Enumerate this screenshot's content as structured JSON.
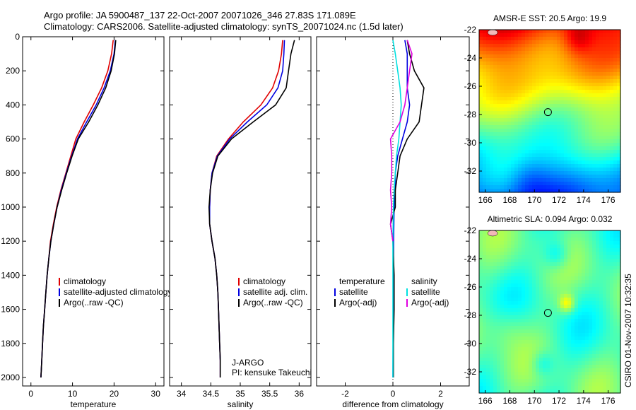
{
  "header": {
    "line1": "Argo profile: JA 5900487_137 22-Oct-2007 20071026_346 27.83S 171.089E",
    "line2": "Climatology: CARS2006. Satellite-adjusted climatology: synTS_20071024.nc (1.5d later)"
  },
  "side_text": "CSIRO 01-Nov-2007 10:32:35",
  "pi_text": [
    "J-ARGO",
    "PI: kensuke Takeuchi"
  ],
  "colors": {
    "climatology": "#e00000",
    "satellite": "#0000e0",
    "argo": "#000000",
    "sat_salinity": "#00e0e0",
    "argo_salinity": "#e000e0"
  },
  "chart_data": [
    {
      "type": "line",
      "xlabel": "temperature",
      "xlim": [
        -2,
        32
      ],
      "ylim": [
        0,
        2050
      ],
      "y_reversed": true,
      "xticks": [
        0,
        10,
        20,
        30
      ],
      "yticks": [
        0,
        200,
        400,
        600,
        800,
        1000,
        1200,
        1400,
        1600,
        1800,
        2000
      ],
      "legend": [
        "climatology",
        "satellite-adjusted climatology",
        "Argo(..raw -QC)"
      ],
      "series": [
        {
          "name": "climatology",
          "color": "#e00000",
          "points": [
            [
              19.8,
              20
            ],
            [
              19.4,
              100
            ],
            [
              18.5,
              200
            ],
            [
              17.0,
              300
            ],
            [
              15.0,
              400
            ],
            [
              12.8,
              500
            ],
            [
              10.8,
              600
            ],
            [
              9.6,
              700
            ],
            [
              8.4,
              800
            ],
            [
              7.2,
              900
            ],
            [
              6.2,
              1000
            ],
            [
              5.4,
              1100
            ],
            [
              4.7,
              1200
            ],
            [
              4.3,
              1300
            ],
            [
              3.9,
              1400
            ],
            [
              3.6,
              1500
            ],
            [
              3.3,
              1600
            ],
            [
              3.0,
              1700
            ],
            [
              2.8,
              1800
            ],
            [
              2.6,
              1900
            ],
            [
              2.4,
              2000
            ]
          ]
        },
        {
          "name": "satellite-adjusted climatology",
          "color": "#0000e0",
          "points": [
            [
              20.3,
              20
            ],
            [
              20.0,
              100
            ],
            [
              19.1,
              200
            ],
            [
              17.6,
              300
            ],
            [
              15.7,
              400
            ],
            [
              13.4,
              500
            ],
            [
              11.2,
              600
            ],
            [
              9.8,
              700
            ],
            [
              8.5,
              800
            ],
            [
              7.3,
              900
            ],
            [
              6.3,
              1000
            ],
            [
              5.5,
              1100
            ],
            [
              4.8,
              1200
            ],
            [
              4.3,
              1300
            ],
            [
              3.9,
              1400
            ],
            [
              3.6,
              1500
            ],
            [
              3.3,
              1600
            ],
            [
              3.0,
              1700
            ],
            [
              2.8,
              1800
            ],
            [
              2.6,
              1900
            ],
            [
              2.4,
              2000
            ]
          ]
        },
        {
          "name": "Argo(..raw -QC)",
          "color": "#000000",
          "points": [
            [
              20.4,
              20
            ],
            [
              20.1,
              100
            ],
            [
              19.3,
              200
            ],
            [
              18.0,
              300
            ],
            [
              16.1,
              400
            ],
            [
              13.9,
              500
            ],
            [
              11.4,
              600
            ],
            [
              9.9,
              700
            ],
            [
              8.6,
              800
            ],
            [
              7.4,
              900
            ],
            [
              6.3,
              1000
            ],
            [
              5.5,
              1100
            ],
            [
              4.8,
              1200
            ],
            [
              4.3,
              1300
            ],
            [
              3.9,
              1400
            ],
            [
              3.6,
              1500
            ],
            [
              3.3,
              1600
            ],
            [
              3.0,
              1700
            ],
            [
              2.8,
              1800
            ],
            [
              2.6,
              1900
            ],
            [
              2.4,
              2000
            ]
          ]
        }
      ]
    },
    {
      "type": "line",
      "xlabel": "salinity",
      "xlim": [
        33.8,
        36.2
      ],
      "ylim": [
        0,
        2050
      ],
      "y_reversed": true,
      "xticks": [
        34,
        34.5,
        35,
        35.5,
        36
      ],
      "legend": [
        "climatology",
        "satellite adj. clim.",
        "Argo(..raw -QC)"
      ],
      "series": [
        {
          "name": "climatology",
          "color": "#e00000",
          "points": [
            [
              35.72,
              20
            ],
            [
              35.7,
              100
            ],
            [
              35.65,
              200
            ],
            [
              35.55,
              300
            ],
            [
              35.35,
              400
            ],
            [
              35.05,
              500
            ],
            [
              34.8,
              600
            ],
            [
              34.6,
              700
            ],
            [
              34.52,
              800
            ],
            [
              34.49,
              900
            ],
            [
              34.48,
              1000
            ],
            [
              34.48,
              1100
            ],
            [
              34.52,
              1200
            ],
            [
              34.57,
              1300
            ],
            [
              34.6,
              1400
            ],
            [
              34.62,
              1500
            ],
            [
              34.63,
              1600
            ],
            [
              34.64,
              1700
            ],
            [
              34.65,
              1800
            ],
            [
              34.66,
              1900
            ],
            [
              34.66,
              2000
            ]
          ]
        },
        {
          "name": "satellite adj. clim.",
          "color": "#0000e0",
          "points": [
            [
              35.75,
              20
            ],
            [
              35.74,
              100
            ],
            [
              35.72,
              200
            ],
            [
              35.64,
              300
            ],
            [
              35.45,
              400
            ],
            [
              35.12,
              500
            ],
            [
              34.82,
              600
            ],
            [
              34.61,
              700
            ],
            [
              34.52,
              800
            ],
            [
              34.49,
              900
            ],
            [
              34.48,
              1000
            ],
            [
              34.48,
              1100
            ],
            [
              34.52,
              1200
            ],
            [
              34.57,
              1300
            ],
            [
              34.6,
              1400
            ],
            [
              34.62,
              1500
            ],
            [
              34.63,
              1600
            ],
            [
              34.64,
              1700
            ],
            [
              34.65,
              1800
            ],
            [
              34.66,
              1900
            ],
            [
              34.66,
              2000
            ]
          ]
        },
        {
          "name": "Argo(..raw -QC)",
          "color": "#000000",
          "points": [
            [
              35.92,
              20
            ],
            [
              35.86,
              100
            ],
            [
              35.82,
              200
            ],
            [
              35.78,
              300
            ],
            [
              35.6,
              400
            ],
            [
              35.22,
              500
            ],
            [
              34.85,
              600
            ],
            [
              34.62,
              700
            ],
            [
              34.53,
              800
            ],
            [
              34.49,
              900
            ],
            [
              34.47,
              1000
            ],
            [
              34.48,
              1100
            ],
            [
              34.52,
              1200
            ],
            [
              34.57,
              1300
            ],
            [
              34.6,
              1400
            ],
            [
              34.62,
              1500
            ],
            [
              34.63,
              1600
            ],
            [
              34.64,
              1700
            ],
            [
              34.65,
              1800
            ],
            [
              34.66,
              1900
            ],
            [
              34.66,
              2000
            ]
          ]
        }
      ]
    },
    {
      "type": "line",
      "xlabel": "difference from climatology",
      "xlim": [
        -3.2,
        3.2
      ],
      "ylim": [
        0,
        2050
      ],
      "y_reversed": true,
      "xticks": [
        -2,
        0,
        2
      ],
      "legend_columns": [
        [
          "temperature",
          "satellite",
          "Argo(-adj)"
        ],
        [
          "salinity",
          "satellite",
          "Argo(-adj)"
        ]
      ],
      "series": [
        {
          "name": "satellite",
          "group": "temperature",
          "color": "#0000e0",
          "points": [
            [
              0.5,
              20
            ],
            [
              0.6,
              100
            ],
            [
              0.6,
              200
            ],
            [
              0.6,
              300
            ],
            [
              0.7,
              400
            ],
            [
              0.6,
              500
            ],
            [
              0.4,
              600
            ],
            [
              0.2,
              700
            ],
            [
              0.1,
              800
            ],
            [
              0.1,
              900
            ],
            [
              0.05,
              1000
            ],
            [
              0.03,
              1200
            ],
            [
              0.02,
              1400
            ],
            [
              0.02,
              1600
            ],
            [
              0.01,
              1800
            ],
            [
              0.0,
              2000
            ]
          ]
        },
        {
          "name": "Argo(-adj)",
          "group": "temperature",
          "color": "#000000",
          "points": [
            [
              0.6,
              20
            ],
            [
              0.7,
              100
            ],
            [
              0.9,
              200
            ],
            [
              1.3,
              300
            ],
            [
              1.2,
              400
            ],
            [
              1.1,
              500
            ],
            [
              0.6,
              600
            ],
            [
              0.3,
              700
            ],
            [
              0.2,
              800
            ],
            [
              0.1,
              900
            ],
            [
              0.1,
              1000
            ],
            [
              -0.1,
              1100
            ],
            [
              0.0,
              1200
            ],
            [
              0.05,
              1400
            ],
            [
              0.05,
              1600
            ],
            [
              0.02,
              1800
            ],
            [
              0.02,
              2000
            ]
          ]
        },
        {
          "name": "satellite",
          "group": "salinity",
          "color": "#00e0e0",
          "points": [
            [
              0.0,
              20
            ],
            [
              0.1,
              100
            ],
            [
              0.2,
              200
            ],
            [
              0.3,
              300
            ],
            [
              0.35,
              400
            ],
            [
              0.3,
              500
            ],
            [
              0.25,
              600
            ],
            [
              0.15,
              700
            ],
            [
              0.1,
              800
            ],
            [
              0.05,
              900
            ],
            [
              0.02,
              1000
            ],
            [
              0.0,
              1200
            ],
            [
              0.0,
              1400
            ],
            [
              0.0,
              1600
            ],
            [
              0.0,
              1800
            ],
            [
              0.0,
              2000
            ]
          ]
        },
        {
          "name": "Argo(-adj)",
          "group": "salinity",
          "color": "#e000e0",
          "points": [
            [
              0.6,
              20
            ],
            [
              0.8,
              100
            ],
            [
              0.7,
              200
            ],
            [
              0.6,
              300
            ],
            [
              0.5,
              400
            ],
            [
              0.3,
              500
            ],
            [
              -0.1,
              600
            ],
            [
              -0.05,
              700
            ],
            [
              -0.05,
              800
            ],
            [
              -0.1,
              900
            ],
            [
              -0.05,
              1000
            ],
            [
              -0.1,
              1100
            ],
            [
              0.0,
              1200
            ]
          ]
        }
      ]
    },
    {
      "type": "heatmap",
      "title": "AMSR-E SST: 20.5  Argo: 19.9",
      "xlim": [
        165.5,
        177
      ],
      "ylim": [
        -33.5,
        -22
      ],
      "xticks": [
        166,
        168,
        170,
        172,
        174,
        176
      ],
      "yticks": [
        -22,
        -24,
        -26,
        -28,
        -30,
        -32
      ],
      "marker": [
        171.1,
        -27.83
      ]
    },
    {
      "type": "heatmap",
      "title": "Altimetric SLA: 0.094  Argo: 0.032",
      "xlim": [
        165.5,
        177
      ],
      "ylim": [
        -33.5,
        -22
      ],
      "xticks": [
        166,
        168,
        170,
        172,
        174,
        176
      ],
      "yticks": [
        -22,
        -24,
        -26,
        -28,
        -30,
        -32
      ],
      "marker": [
        171.1,
        -27.83
      ]
    }
  ]
}
